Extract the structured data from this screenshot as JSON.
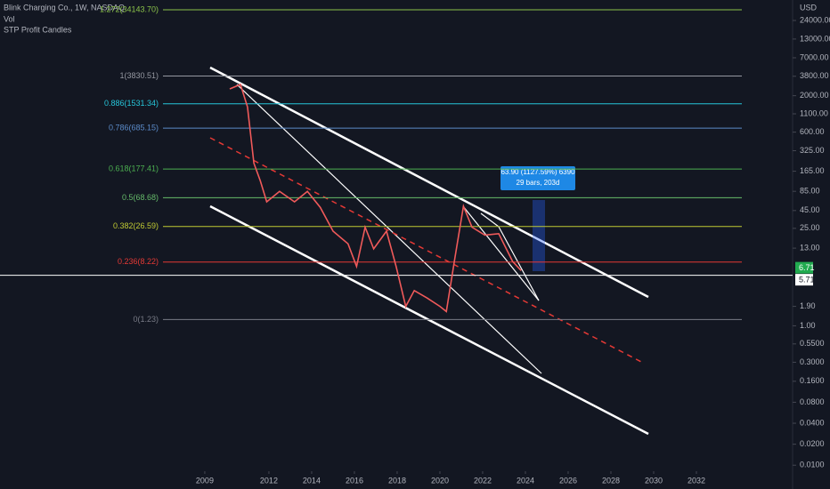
{
  "chart_data": {
    "type": "line",
    "title": "Blink Charging Co., 1W, NASDAQ",
    "indicators": [
      "Vol",
      "STP Profit Candles"
    ],
    "currency": "USD",
    "log_scale": true,
    "xlim": [
      1999.42,
      2036.5
    ],
    "ylim": [
      0.0082,
      47200
    ],
    "xticks": [
      2009,
      2012,
      2014,
      2016,
      2018,
      2020,
      2022,
      2024,
      2026,
      2028,
      2030,
      2032
    ],
    "yticks": [
      {
        "value": 24000,
        "label": "24000.00"
      },
      {
        "value": 13000,
        "label": "13000.00"
      },
      {
        "value": 7000,
        "label": "7000.00"
      },
      {
        "value": 3800,
        "label": "3800.00"
      },
      {
        "value": 2000,
        "label": "2000.00"
      },
      {
        "value": 1100,
        "label": "1100.00"
      },
      {
        "value": 600,
        "label": "600.00"
      },
      {
        "value": 325,
        "label": "325.00"
      },
      {
        "value": 165,
        "label": "165.00"
      },
      {
        "value": 85,
        "label": "85.00"
      },
      {
        "value": 45,
        "label": "45.00"
      },
      {
        "value": 25,
        "label": "25.00"
      },
      {
        "value": 13,
        "label": "13.00"
      },
      {
        "value": 1.9,
        "label": "1.90"
      },
      {
        "value": 1,
        "label": "1.00"
      },
      {
        "value": 0.55,
        "label": "0.5500"
      },
      {
        "value": 0.3,
        "label": "0.3000"
      },
      {
        "value": 0.16,
        "label": "0.1600"
      },
      {
        "value": 0.08,
        "label": "0.0800"
      },
      {
        "value": 0.04,
        "label": "0.0400"
      },
      {
        "value": 0.02,
        "label": "0.0200"
      },
      {
        "value": 0.01,
        "label": "0.0100"
      }
    ],
    "x": [
      2010.17,
      2010.67,
      2011.0,
      2011.3,
      2011.6,
      2011.9,
      2012.5,
      2013.2,
      2013.8,
      2014.4,
      2015.0,
      2015.7,
      2016.1,
      2016.5,
      2016.9,
      2017.5,
      2017.95,
      2018.4,
      2018.8,
      2019.4,
      2020.0,
      2020.3,
      2020.7,
      2021.1,
      2021.5,
      2022.1,
      2022.75,
      2023.4,
      2023.8
    ],
    "series": [
      {
        "name": "STP Profit Candles",
        "color": "#f05a5a",
        "values": [
          2500,
          2900,
          1380,
          215,
          120,
          60,
          85,
          60,
          85,
          50,
          22.8,
          15,
          7.1,
          26,
          12.7,
          22.8,
          7.1,
          1.9,
          3.2,
          2.5,
          1.9,
          1.6,
          9.4,
          52,
          26,
          20,
          21,
          8.4,
          6.2
        ]
      }
    ],
    "levels": [
      {
        "label": "1.272(34143.70)",
        "value": 34143.7,
        "color": "#8bc34a"
      },
      {
        "label": "1(3830.51)",
        "value": 3830.51,
        "color": "#9598a1"
      },
      {
        "label": "0.886(1531.34)",
        "value": 1531.34,
        "color": "#26c6da"
      },
      {
        "label": "0.786(685.15)",
        "value": 685.15,
        "color": "#5b8bc9"
      },
      {
        "label": "0.618(177.41)",
        "value": 177.41,
        "color": "#4caf50"
      },
      {
        "label": "0.5(68.68)",
        "value": 68.68,
        "color": "#66bb6a"
      },
      {
        "label": "0.382(26.59)",
        "value": 26.59,
        "color": "#c0ca33"
      },
      {
        "label": "0.236(8.22)",
        "value": 8.22,
        "color": "#e53935"
      },
      {
        "label": "0(1.23)",
        "value": 1.23,
        "color": "#787b86"
      }
    ],
    "price_labels": [
      {
        "label": "6.71",
        "value": 6.71,
        "color": "#22ab50"
      },
      {
        "label": "5.71",
        "value": 5.71,
        "color": "#ffffff"
      }
    ],
    "measure": {
      "line1": "63.90 (1127.59%) 6390",
      "line2": "29 bars, 203d"
    }
  }
}
